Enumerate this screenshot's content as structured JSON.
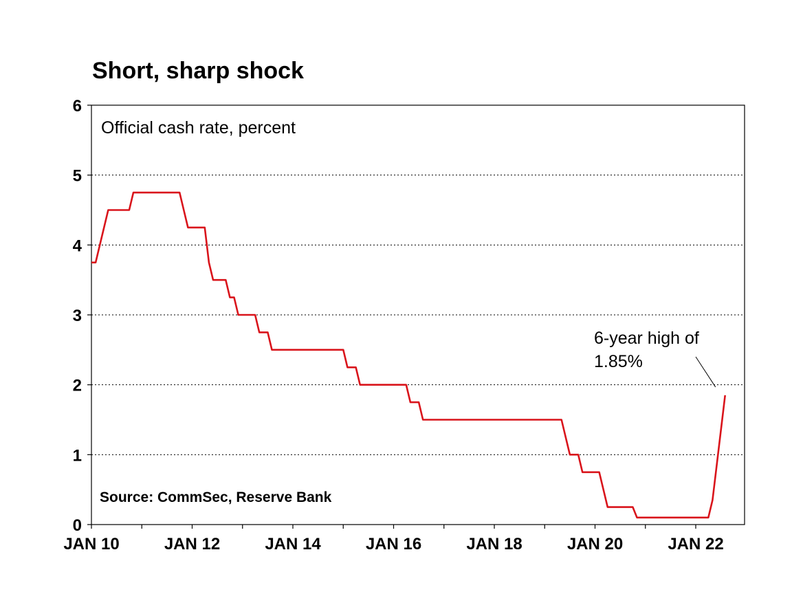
{
  "title": "Short, sharp shock",
  "chart_data": {
    "type": "line",
    "title": "Short, sharp shock",
    "subtitle": "Official cash rate, percent",
    "source": "Source: CommSec, Reserve Bank",
    "annotation": "6-year high of 1.85%",
    "annotation_lines": [
      "6-year high of",
      "1.85%"
    ],
    "ylim": [
      0,
      6
    ],
    "yticks": [
      "0",
      "1",
      "2",
      "3",
      "4",
      "5",
      "6"
    ],
    "xlim": [
      "2010-01",
      "2022-08"
    ],
    "xticks": [
      {
        "label": "JAN 10",
        "date": "2010-01"
      },
      {
        "label": "JAN 12",
        "date": "2012-01"
      },
      {
        "label": "JAN 14",
        "date": "2014-01"
      },
      {
        "label": "JAN 16",
        "date": "2016-01"
      },
      {
        "label": "JAN 18",
        "date": "2018-01"
      },
      {
        "label": "JAN 20",
        "date": "2020-01"
      },
      {
        "label": "JAN 22",
        "date": "2022-01"
      }
    ],
    "grid": "horizontal dotted",
    "line_color": "#d9141b",
    "series": [
      {
        "points": [
          [
            "2010-01",
            3.75
          ],
          [
            "2010-02",
            3.75
          ],
          [
            "2010-03",
            4.0
          ],
          [
            "2010-04",
            4.25
          ],
          [
            "2010-05",
            4.5
          ],
          [
            "2010-10",
            4.5
          ],
          [
            "2010-11",
            4.75
          ],
          [
            "2011-10",
            4.75
          ],
          [
            "2011-11",
            4.5
          ],
          [
            "2011-12",
            4.25
          ],
          [
            "2012-04",
            4.25
          ],
          [
            "2012-05",
            3.75
          ],
          [
            "2012-06",
            3.5
          ],
          [
            "2012-09",
            3.5
          ],
          [
            "2012-10",
            3.25
          ],
          [
            "2012-11",
            3.25
          ],
          [
            "2012-12",
            3.0
          ],
          [
            "2013-04",
            3.0
          ],
          [
            "2013-05",
            2.75
          ],
          [
            "2013-07",
            2.75
          ],
          [
            "2013-08",
            2.5
          ],
          [
            "2015-01",
            2.5
          ],
          [
            "2015-02",
            2.25
          ],
          [
            "2015-04",
            2.25
          ],
          [
            "2015-05",
            2.0
          ],
          [
            "2016-04",
            2.0
          ],
          [
            "2016-05",
            1.75
          ],
          [
            "2016-07",
            1.75
          ],
          [
            "2016-08",
            1.5
          ],
          [
            "2019-05",
            1.5
          ],
          [
            "2019-06",
            1.25
          ],
          [
            "2019-07",
            1.0
          ],
          [
            "2019-09",
            1.0
          ],
          [
            "2019-10",
            0.75
          ],
          [
            "2020-02",
            0.75
          ],
          [
            "2020-03",
            0.5
          ],
          [
            "2020-04",
            0.25
          ],
          [
            "2020-10",
            0.25
          ],
          [
            "2020-11",
            0.1
          ],
          [
            "2022-04",
            0.1
          ],
          [
            "2022-05",
            0.35
          ],
          [
            "2022-06",
            0.85
          ],
          [
            "2022-07",
            1.35
          ],
          [
            "2022-08",
            1.85
          ]
        ]
      }
    ]
  }
}
